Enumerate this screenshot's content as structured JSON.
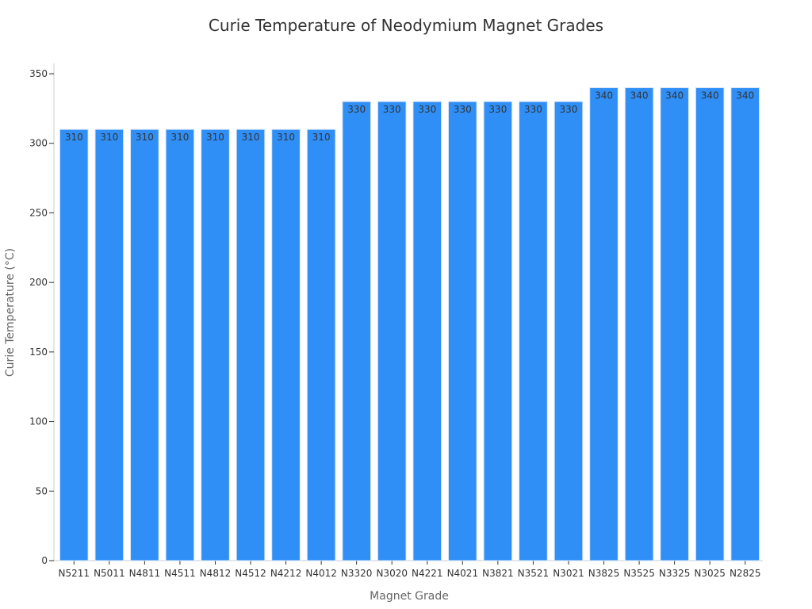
{
  "chart_data": {
    "type": "bar",
    "title": "Curie Temperature of Neodymium Magnet Grades",
    "xlabel": "Magnet Grade",
    "ylabel": "Curie Temperature (°C)",
    "ylim": [
      0,
      350
    ],
    "yticks": [
      0,
      50,
      100,
      150,
      200,
      250,
      300,
      350
    ],
    "grid": false,
    "legend": "none",
    "bar_color": "#2f8ff7",
    "categories": [
      "N5211",
      "N5011",
      "N4811",
      "N4511",
      "N4812",
      "N4512",
      "N4212",
      "N4012",
      "N3320",
      "N3020",
      "N4221",
      "N4021",
      "N3821",
      "N3521",
      "N3021",
      "N3825",
      "N3525",
      "N3325",
      "N3025",
      "N2825"
    ],
    "values": [
      310,
      310,
      310,
      310,
      310,
      310,
      310,
      310,
      330,
      330,
      330,
      330,
      330,
      330,
      330,
      340,
      340,
      340,
      340,
      340
    ],
    "data_labels": [
      "310",
      "310",
      "310",
      "310",
      "310",
      "310",
      "310",
      "310",
      "330",
      "330",
      "330",
      "330",
      "330",
      "330",
      "330",
      "340",
      "340",
      "340",
      "340",
      "340"
    ]
  }
}
